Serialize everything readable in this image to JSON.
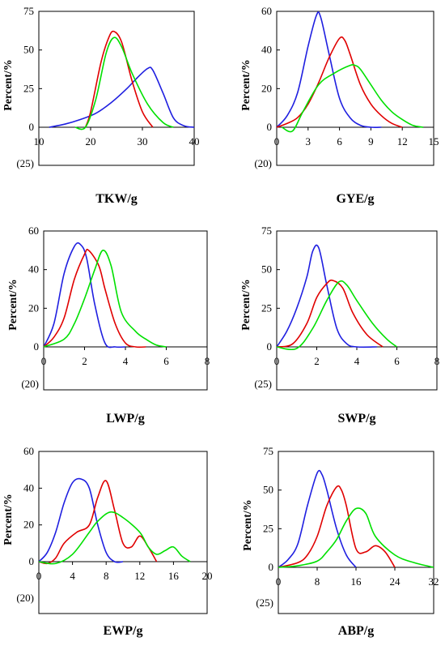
{
  "chart_data": [
    {
      "type": "line",
      "xlabel": "TKW/g",
      "ylabel": "Percent/%",
      "below_axis_label": "(25)",
      "xlim": [
        10,
        40
      ],
      "ylim": [
        0,
        75
      ],
      "xticks": [
        "10",
        "20",
        "30",
        "40"
      ],
      "yticks": [
        "0",
        "25",
        "50",
        "75"
      ],
      "series": [
        {
          "color": "#1f1fe0",
          "x": [
            12,
            15,
            18,
            21,
            24,
            27,
            29,
            31,
            32,
            34,
            36,
            38,
            40
          ],
          "y": [
            0,
            2,
            5,
            9,
            16,
            25,
            32,
            38,
            37,
            22,
            6,
            1,
            0
          ]
        },
        {
          "color": "#e00000",
          "x": [
            19,
            20,
            22,
            23.5,
            24.5,
            26,
            28,
            30,
            32
          ],
          "y": [
            0,
            10,
            42,
            58,
            62,
            55,
            30,
            10,
            0
          ]
        },
        {
          "color": "#00e000",
          "x": [
            17,
            19,
            21,
            23,
            24.5,
            26,
            28,
            31,
            34,
            36
          ],
          "y": [
            0,
            0,
            18,
            48,
            58,
            52,
            35,
            15,
            3,
            0
          ]
        }
      ]
    },
    {
      "type": "line",
      "xlabel": "GYE/g",
      "ylabel": "Percent/%",
      "below_axis_label": "(20)",
      "xlim": [
        0,
        15
      ],
      "ylim": [
        0,
        60
      ],
      "xticks": [
        "0",
        "3",
        "6",
        "9",
        "12",
        "15"
      ],
      "yticks": [
        "0",
        "20",
        "40",
        "60"
      ],
      "series": [
        {
          "color": "#1f1fe0",
          "x": [
            0,
            1,
            2,
            3,
            3.8,
            4.2,
            5,
            6,
            7,
            8,
            9,
            10
          ],
          "y": [
            0,
            6,
            18,
            42,
            58,
            57,
            38,
            15,
            5,
            1,
            0,
            0
          ]
        },
        {
          "color": "#e00000",
          "x": [
            0,
            1,
            2,
            3,
            4,
            5,
            6,
            6.5,
            7,
            8,
            9,
            10,
            11,
            12
          ],
          "y": [
            0,
            2,
            5,
            12,
            23,
            36,
            46,
            45,
            38,
            22,
            12,
            6,
            2,
            0
          ]
        },
        {
          "color": "#00e000",
          "x": [
            0.5,
            1.5,
            2.5,
            4,
            5.5,
            7,
            7.5,
            8,
            9,
            10,
            11,
            12,
            13,
            14
          ],
          "y": [
            0,
            -2,
            8,
            22,
            28,
            32,
            32,
            30,
            22,
            14,
            8,
            4,
            1,
            0
          ]
        }
      ]
    },
    {
      "type": "line",
      "xlabel": "LWP/g",
      "ylabel": "Percent/%",
      "below_axis_label": "(20)",
      "xlim": [
        0,
        8
      ],
      "ylim": [
        0,
        60
      ],
      "xticks": [
        "0",
        "2",
        "4",
        "6",
        "8"
      ],
      "yticks": [
        "0",
        "20",
        "40",
        "60"
      ],
      "series": [
        {
          "color": "#1f1fe0",
          "x": [
            0,
            0.5,
            1,
            1.5,
            1.8,
            2.1,
            2.5,
            3,
            3.5,
            4
          ],
          "y": [
            0,
            12,
            38,
            52,
            53,
            46,
            22,
            2,
            0,
            0
          ]
        },
        {
          "color": "#e00000",
          "x": [
            0,
            0.5,
            1,
            1.5,
            2,
            2.2,
            2.7,
            3,
            3.5,
            4,
            4.5,
            5
          ],
          "y": [
            0,
            5,
            15,
            35,
            48,
            50,
            42,
            30,
            12,
            2,
            0,
            0
          ]
        },
        {
          "color": "#00e000",
          "x": [
            0,
            1,
            1.5,
            2,
            2.5,
            2.9,
            3.3,
            3.8,
            4.5,
            5,
            5.5,
            6
          ],
          "y": [
            0,
            4,
            12,
            25,
            40,
            50,
            42,
            18,
            8,
            4,
            1,
            0
          ]
        }
      ]
    },
    {
      "type": "line",
      "xlabel": "SWP/g",
      "ylabel": "Percent/%",
      "below_axis_label": "(25)",
      "xlim": [
        0,
        8
      ],
      "ylim": [
        0,
        75
      ],
      "xticks": [
        "0",
        "2",
        "4",
        "6",
        "8"
      ],
      "yticks": [
        "0",
        "25",
        "50",
        "75"
      ],
      "series": [
        {
          "color": "#1f1fe0",
          "x": [
            0,
            0.5,
            1,
            1.5,
            1.8,
            2.1,
            2.5,
            3,
            3.5,
            4,
            5
          ],
          "y": [
            0,
            10,
            25,
            45,
            62,
            64,
            40,
            12,
            2,
            0,
            0
          ]
        },
        {
          "color": "#e00000",
          "x": [
            0,
            0.8,
            1.5,
            2,
            2.5,
            2.8,
            3.3,
            3.8,
            4.5,
            5.3
          ],
          "y": [
            0,
            2,
            15,
            32,
            41,
            43,
            38,
            22,
            8,
            0
          ]
        },
        {
          "color": "#00e000",
          "x": [
            0,
            1,
            1.8,
            2.5,
            3.1,
            3.5,
            4,
            4.8,
            5.5,
            6
          ],
          "y": [
            0,
            -1,
            12,
            30,
            42,
            40,
            30,
            15,
            5,
            0
          ]
        }
      ]
    },
    {
      "type": "line",
      "xlabel": "EWP/g",
      "ylabel": "Percent/%",
      "below_axis_label": "(20)",
      "xlim": [
        0,
        20
      ],
      "ylim": [
        0,
        60
      ],
      "xticks": [
        "0",
        "4",
        "8",
        "12",
        "16",
        "20"
      ],
      "yticks": [
        "0",
        "20",
        "40",
        "60"
      ],
      "series": [
        {
          "color": "#1f1fe0",
          "x": [
            0,
            1,
            2,
            3,
            4,
            5,
            6,
            7,
            8,
            9,
            10
          ],
          "y": [
            0,
            5,
            16,
            32,
            43,
            45,
            40,
            20,
            5,
            0,
            0
          ]
        },
        {
          "color": "#e00000",
          "x": [
            0,
            1,
            2,
            3,
            4.5,
            6,
            7,
            8,
            9,
            10,
            11,
            12,
            13,
            14
          ],
          "y": [
            0,
            -1,
            2,
            10,
            16,
            20,
            35,
            44,
            28,
            10,
            8,
            14,
            8,
            0
          ]
        },
        {
          "color": "#00e000",
          "x": [
            0,
            2,
            4,
            6,
            7,
            8.5,
            10,
            12,
            13,
            14,
            15,
            16,
            17,
            18
          ],
          "y": [
            0,
            -1,
            4,
            16,
            22,
            27,
            24,
            16,
            8,
            4,
            6,
            8,
            3,
            0
          ]
        }
      ]
    },
    {
      "type": "line",
      "xlabel": "ABP/g",
      "ylabel": "Percent/%",
      "below_axis_label": "(25)",
      "xlim": [
        0,
        32
      ],
      "ylim": [
        0,
        75
      ],
      "xticks": [
        "0",
        "8",
        "16",
        "24",
        "32"
      ],
      "yticks": [
        "0",
        "25",
        "50",
        "75"
      ],
      "series": [
        {
          "color": "#1f1fe0",
          "x": [
            0,
            2,
            4,
            6,
            8,
            9,
            10,
            12,
            14,
            16
          ],
          "y": [
            0,
            5,
            15,
            40,
            61,
            60,
            50,
            25,
            8,
            0
          ]
        },
        {
          "color": "#e00000",
          "x": [
            0,
            4,
            6,
            8,
            10,
            12,
            13,
            14,
            16,
            18,
            20,
            22,
            24
          ],
          "y": [
            0,
            3,
            8,
            20,
            40,
            52,
            50,
            40,
            12,
            10,
            14,
            10,
            0
          ]
        },
        {
          "color": "#00e000",
          "x": [
            0,
            4,
            8,
            10,
            12,
            14,
            16,
            18,
            20,
            24,
            28,
            32
          ],
          "y": [
            0,
            1,
            4,
            10,
            18,
            30,
            38,
            35,
            20,
            8,
            3,
            0
          ]
        }
      ]
    }
  ]
}
